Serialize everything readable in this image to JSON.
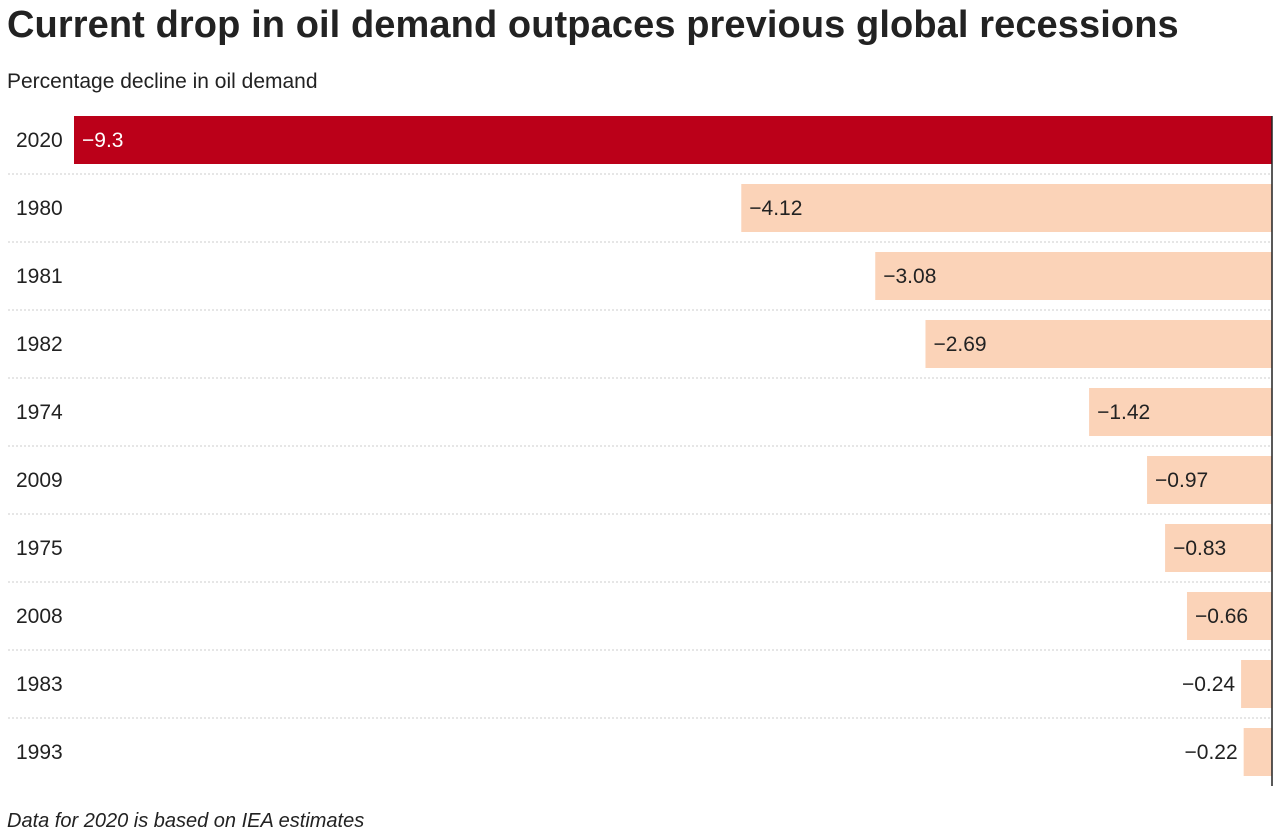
{
  "chart_data": {
    "type": "bar",
    "orientation": "horizontal",
    "title": "Current drop in oil demand outpaces previous global recessions",
    "subtitle": "Percentage decline in oil demand",
    "categories": [
      "2020",
      "1980",
      "1981",
      "1982",
      "1974",
      "2009",
      "1975",
      "2008",
      "1983",
      "1993"
    ],
    "values": [
      -9.3,
      -4.12,
      -3.08,
      -2.69,
      -1.42,
      -0.97,
      -0.83,
      -0.66,
      -0.24,
      -0.22
    ],
    "labels": [
      "−9.3",
      "−4.12",
      "−3.08",
      "−2.69",
      "−1.42",
      "−0.97",
      "−0.83",
      "−0.66",
      "−0.24",
      "−0.22"
    ],
    "xlim": [
      -9.3,
      0
    ],
    "grid": false,
    "footnote": "Data for 2020 is based on IEA estimates",
    "colors": {
      "highlight": "#bb0019",
      "bar": "#fbd3b8",
      "text": "#222222",
      "highlight_text": "#ffffff",
      "separator": "#cccccc",
      "axis": "#222222"
    }
  }
}
